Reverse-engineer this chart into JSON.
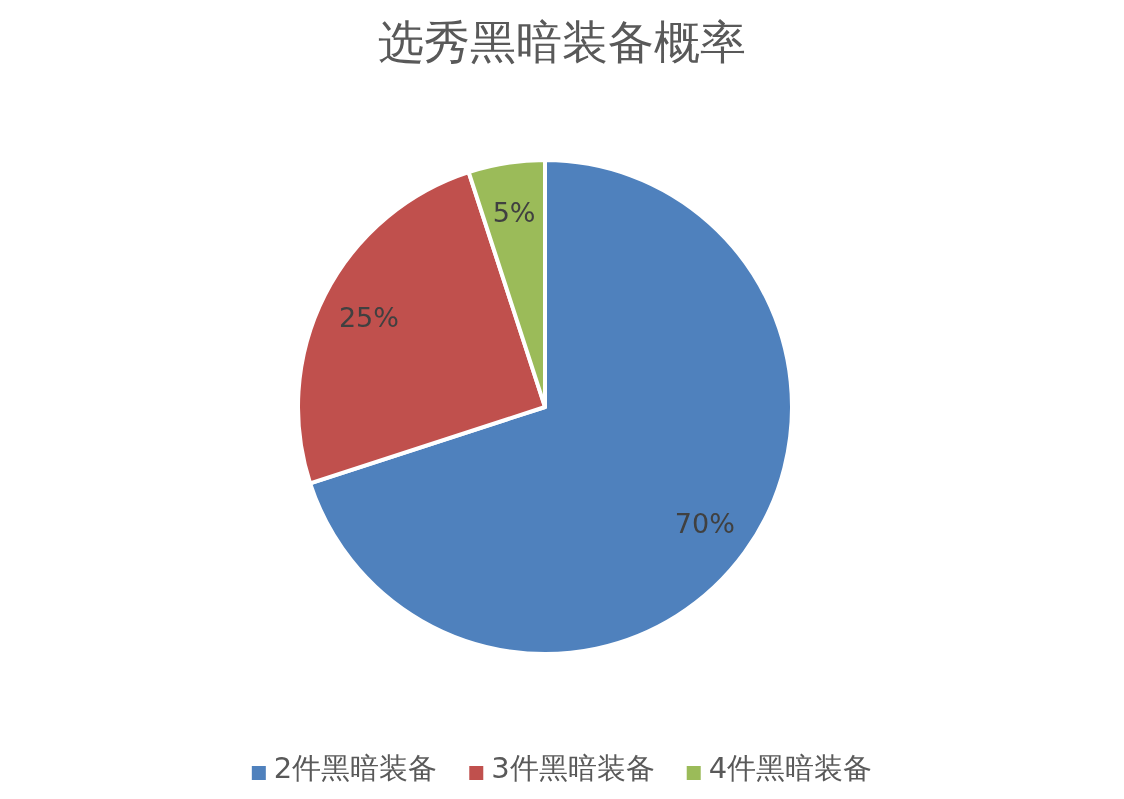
{
  "chart_data": {
    "type": "pie",
    "title": "选秀黑暗装备概率",
    "categories": [
      "2件黑暗装备",
      "3件黑暗装备",
      "4件黑暗装备"
    ],
    "values": [
      70,
      25,
      5
    ],
    "colors": [
      "#4f81bd",
      "#c0504d",
      "#9bbb59"
    ],
    "value_labels": [
      "70%",
      "25%",
      "5%"
    ],
    "legend": "bottom"
  }
}
